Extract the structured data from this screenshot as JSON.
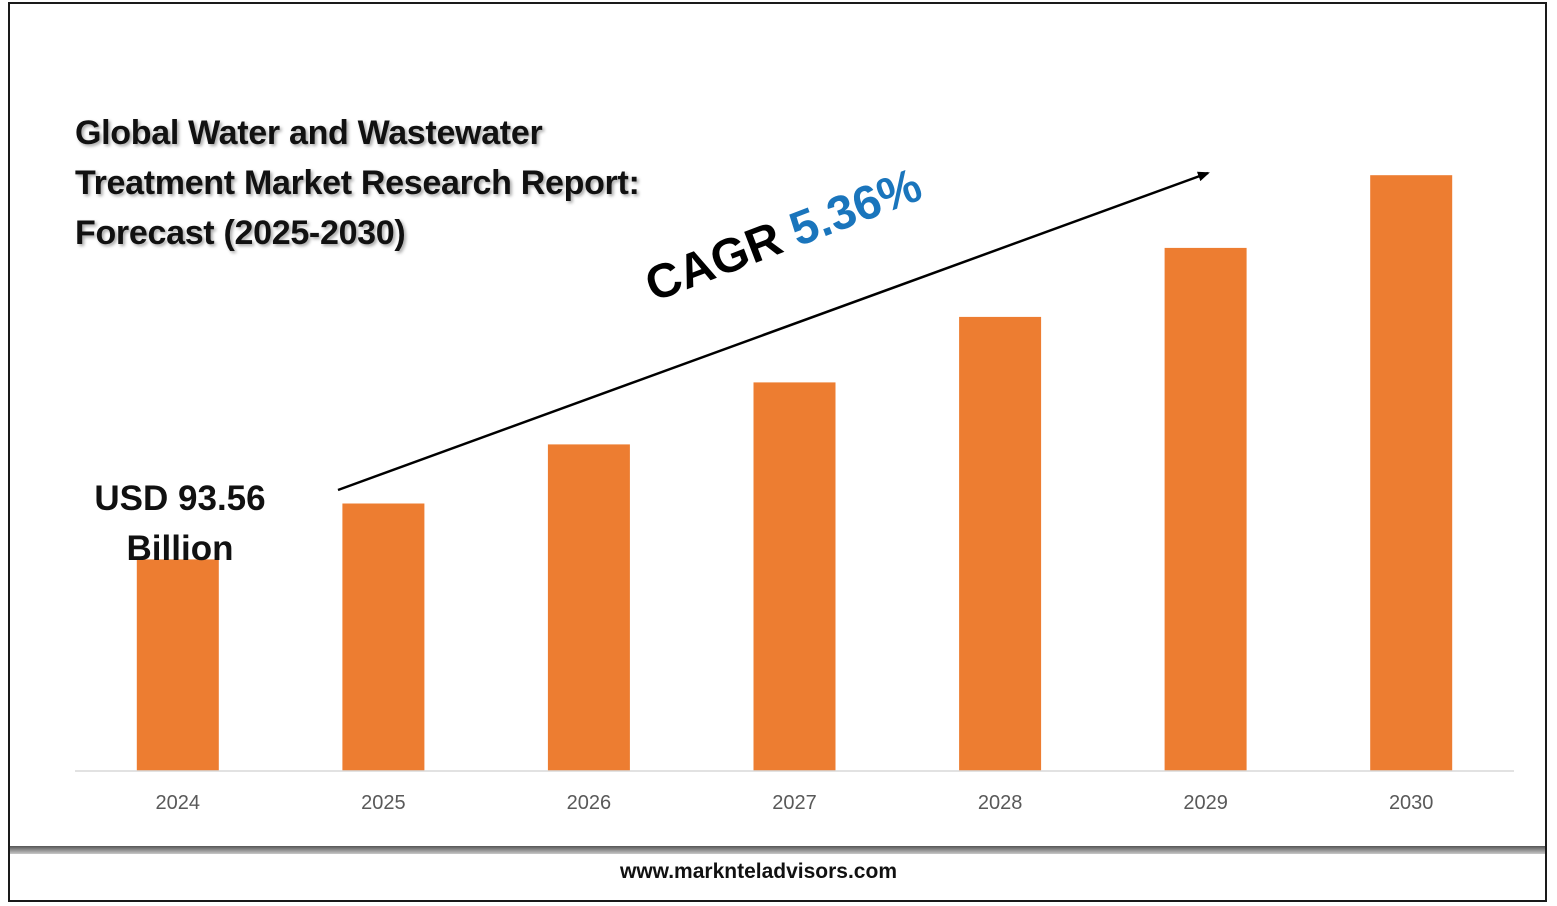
{
  "header": {
    "title_lines": [
      "Global Water and Wastewater",
      "Treatment Market Research Report:",
      "Forecast (2025-2030)"
    ]
  },
  "annotations": {
    "start_value_lines": [
      "USD 93.56",
      "Billion"
    ],
    "cagr_label": "CAGR",
    "cagr_value": "5.36%"
  },
  "footer": {
    "url": "www.marknteladvisors.com"
  },
  "colors": {
    "bar": "#ed7d31",
    "cagr_value": "#1a75bc",
    "tick_text": "#595959"
  },
  "chart_data": {
    "type": "bar",
    "title": "Global Water and Wastewater Treatment Market Research Report: Forecast (2025-2030)",
    "categories": [
      "2024",
      "2025",
      "2026",
      "2027",
      "2028",
      "2029",
      "2030"
    ],
    "values": [
      93.56,
      98.57,
      103.86,
      109.42,
      115.29,
      121.47,
      127.98
    ],
    "ylim": [
      74.6,
      128.0
    ],
    "grid": false,
    "legend": "none",
    "xlabel": "",
    "ylabel": ""
  }
}
